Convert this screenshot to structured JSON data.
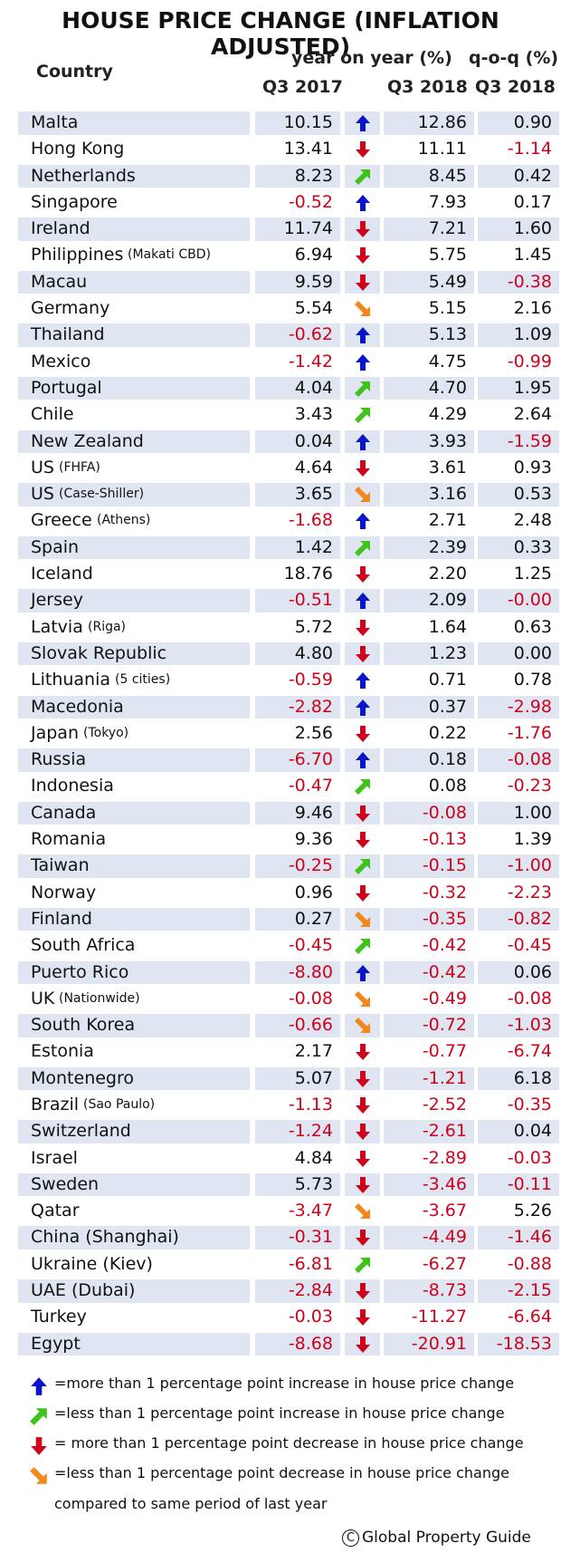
{
  "title": "HOUSE PRICE CHANGE (INFLATION ADJUSTED)",
  "headers": {
    "country": "Country",
    "yoy": "year on year (%)",
    "qoq": "q-o-q (%)",
    "q3_2017": "Q3 2017",
    "q3_2018": "Q3 2018",
    "qoq_q3_2018": "Q3 2018"
  },
  "colors": {
    "up_big": "#0a14c8",
    "up_small": "#3fc21a",
    "down_big": "#d0021b",
    "down_small": "#f2871e",
    "negative_text": "#d0021b",
    "band": "#dfe6f2"
  },
  "rows": [
    {
      "country": "Malta",
      "note": "",
      "q3_2017": "10.15",
      "arrow": "up_big",
      "q3_2018": "12.86",
      "qoq": "0.90"
    },
    {
      "country": "Hong Kong",
      "note": "",
      "q3_2017": "13.41",
      "arrow": "down_big",
      "q3_2018": "11.11",
      "qoq": "-1.14"
    },
    {
      "country": "Netherlands",
      "note": "",
      "q3_2017": "8.23",
      "arrow": "up_small",
      "q3_2018": "8.45",
      "qoq": "0.42"
    },
    {
      "country": "Singapore",
      "note": "",
      "q3_2017": "-0.52",
      "arrow": "up_big",
      "q3_2018": "7.93",
      "qoq": "0.17"
    },
    {
      "country": "Ireland",
      "note": "",
      "q3_2017": "11.74",
      "arrow": "down_big",
      "q3_2018": "7.21",
      "qoq": "1.60"
    },
    {
      "country": "Philippines",
      "note": "(Makati CBD)",
      "q3_2017": "6.94",
      "arrow": "down_big",
      "q3_2018": "5.75",
      "qoq": "1.45"
    },
    {
      "country": "Macau",
      "note": "",
      "q3_2017": "9.59",
      "arrow": "down_big",
      "q3_2018": "5.49",
      "qoq": "-0.38"
    },
    {
      "country": "Germany",
      "note": "",
      "q3_2017": "5.54",
      "arrow": "down_small",
      "q3_2018": "5.15",
      "qoq": "2.16"
    },
    {
      "country": "Thailand",
      "note": "",
      "q3_2017": "-0.62",
      "arrow": "up_big",
      "q3_2018": "5.13",
      "qoq": "1.09"
    },
    {
      "country": "Mexico",
      "note": "",
      "q3_2017": "-1.42",
      "arrow": "up_big",
      "q3_2018": "4.75",
      "qoq": "-0.99"
    },
    {
      "country": "Portugal",
      "note": "",
      "q3_2017": "4.04",
      "arrow": "up_small",
      "q3_2018": "4.70",
      "qoq": "1.95"
    },
    {
      "country": "Chile",
      "note": "",
      "q3_2017": "3.43",
      "arrow": "up_small",
      "q3_2018": "4.29",
      "qoq": "2.64"
    },
    {
      "country": "New Zealand",
      "note": "",
      "q3_2017": "0.04",
      "arrow": "up_big",
      "q3_2018": "3.93",
      "qoq": "-1.59"
    },
    {
      "country": "US",
      "note": "(FHFA)",
      "q3_2017": "4.64",
      "arrow": "down_big",
      "q3_2018": "3.61",
      "qoq": "0.93"
    },
    {
      "country": "US",
      "note": "(Case-Shiller)",
      "q3_2017": "3.65",
      "arrow": "down_small",
      "q3_2018": "3.16",
      "qoq": "0.53"
    },
    {
      "country": "Greece",
      "note": "(Athens)",
      "q3_2017": "-1.68",
      "arrow": "up_big",
      "q3_2018": "2.71",
      "qoq": "2.48"
    },
    {
      "country": "Spain",
      "note": "",
      "q3_2017": "1.42",
      "arrow": "up_small",
      "q3_2018": "2.39",
      "qoq": "0.33"
    },
    {
      "country": "Iceland",
      "note": "",
      "q3_2017": "18.76",
      "arrow": "down_big",
      "q3_2018": "2.20",
      "qoq": "1.25"
    },
    {
      "country": "Jersey",
      "note": "",
      "q3_2017": "-0.51",
      "arrow": "up_big",
      "q3_2018": "2.09",
      "qoq": "-0.00"
    },
    {
      "country": "Latvia",
      "note": "(Riga)",
      "q3_2017": "5.72",
      "arrow": "down_big",
      "q3_2018": "1.64",
      "qoq": "0.63"
    },
    {
      "country": "Slovak Republic",
      "note": "",
      "q3_2017": "4.80",
      "arrow": "down_big",
      "q3_2018": "1.23",
      "qoq": "0.00"
    },
    {
      "country": "Lithuania",
      "note": "(5 cities)",
      "q3_2017": "-0.59",
      "arrow": "up_big",
      "q3_2018": "0.71",
      "qoq": "0.78"
    },
    {
      "country": "Macedonia",
      "note": "",
      "q3_2017": "-2.82",
      "arrow": "up_big",
      "q3_2018": "0.37",
      "qoq": "-2.98"
    },
    {
      "country": "Japan",
      "note": "(Tokyo)",
      "q3_2017": "2.56",
      "arrow": "down_big",
      "q3_2018": "0.22",
      "qoq": "-1.76"
    },
    {
      "country": "Russia",
      "note": "",
      "q3_2017": "-6.70",
      "arrow": "up_big",
      "q3_2018": "0.18",
      "qoq": "-0.08"
    },
    {
      "country": "Indonesia",
      "note": "",
      "q3_2017": "-0.47",
      "arrow": "up_small",
      "q3_2018": "0.08",
      "qoq": "-0.23"
    },
    {
      "country": "Canada",
      "note": "",
      "q3_2017": "9.46",
      "arrow": "down_big",
      "q3_2018": "-0.08",
      "qoq": "1.00"
    },
    {
      "country": "Romania",
      "note": "",
      "q3_2017": "9.36",
      "arrow": "down_big",
      "q3_2018": "-0.13",
      "qoq": "1.39"
    },
    {
      "country": "Taiwan",
      "note": "",
      "q3_2017": "-0.25",
      "arrow": "up_small",
      "q3_2018": "-0.15",
      "qoq": "-1.00"
    },
    {
      "country": "Norway",
      "note": "",
      "q3_2017": "0.96",
      "arrow": "down_big",
      "q3_2018": "-0.32",
      "qoq": "-2.23"
    },
    {
      "country": "Finland",
      "note": "",
      "q3_2017": "0.27",
      "arrow": "down_small",
      "q3_2018": "-0.35",
      "qoq": "-0.82"
    },
    {
      "country": "South Africa",
      "note": "",
      "q3_2017": "-0.45",
      "arrow": "up_small",
      "q3_2018": "-0.42",
      "qoq": "-0.45"
    },
    {
      "country": "Puerto Rico",
      "note": "",
      "q3_2017": "-8.80",
      "arrow": "up_big",
      "q3_2018": "-0.42",
      "qoq": "0.06"
    },
    {
      "country": "UK",
      "note": "(Nationwide)",
      "q3_2017": "-0.08",
      "arrow": "down_small",
      "q3_2018": "-0.49",
      "qoq": "-0.08"
    },
    {
      "country": "South Korea",
      "note": "",
      "q3_2017": "-0.66",
      "arrow": "down_small",
      "q3_2018": "-0.72",
      "qoq": "-1.03"
    },
    {
      "country": "Estonia",
      "note": "",
      "q3_2017": "2.17",
      "arrow": "down_big",
      "q3_2018": "-0.77",
      "qoq": "-6.74"
    },
    {
      "country": "Montenegro",
      "note": "",
      "q3_2017": "5.07",
      "arrow": "down_big",
      "q3_2018": "-1.21",
      "qoq": "6.18"
    },
    {
      "country": "Brazil",
      "note": "(Sao Paulo)",
      "q3_2017": "-1.13",
      "arrow": "down_big",
      "q3_2018": "-2.52",
      "qoq": "-0.35"
    },
    {
      "country": "Switzerland",
      "note": "",
      "q3_2017": "-1.24",
      "arrow": "down_big",
      "q3_2018": "-2.61",
      "qoq": "0.04"
    },
    {
      "country": "Israel",
      "note": "",
      "q3_2017": "4.84",
      "arrow": "down_big",
      "q3_2018": "-2.89",
      "qoq": "-0.03"
    },
    {
      "country": "Sweden",
      "note": "",
      "q3_2017": "5.73",
      "arrow": "down_big",
      "q3_2018": "-3.46",
      "qoq": "-0.11"
    },
    {
      "country": "Qatar",
      "note": "",
      "q3_2017": "-3.47",
      "arrow": "down_small",
      "q3_2018": "-3.67",
      "qoq": "5.26"
    },
    {
      "country": "China (Shanghai)",
      "note": "",
      "q3_2017": "-0.31",
      "arrow": "down_big",
      "q3_2018": "-4.49",
      "qoq": "-1.46"
    },
    {
      "country": "Ukraine (Kiev)",
      "note": "",
      "q3_2017": "-6.81",
      "arrow": "up_small",
      "q3_2018": "-6.27",
      "qoq": "-0.88"
    },
    {
      "country": "UAE (Dubai)",
      "note": "",
      "q3_2017": "-2.84",
      "arrow": "down_big",
      "q3_2018": "-8.73",
      "qoq": "-2.15"
    },
    {
      "country": "Turkey",
      "note": "",
      "q3_2017": "-0.03",
      "arrow": "down_big",
      "q3_2018": "-11.27",
      "qoq": "-6.64"
    },
    {
      "country": "Egypt",
      "note": "",
      "q3_2017": "-8.68",
      "arrow": "down_big",
      "q3_2018": "-20.91",
      "qoq": "-18.53"
    }
  ],
  "legend": [
    {
      "icon": "up_big",
      "text": "=more than 1 percentage point increase in house price change"
    },
    {
      "icon": "up_small",
      "text": "=less than 1 percentage point increase in house price change"
    },
    {
      "icon": "down_big",
      "text": "= more than 1 percentage point decrease in house price change"
    },
    {
      "icon": "down_small",
      "text": "=less than 1 percentage point decrease in house price change"
    }
  ],
  "legend_note": "compared to same period of last year",
  "credit": "Global Property Guide"
}
